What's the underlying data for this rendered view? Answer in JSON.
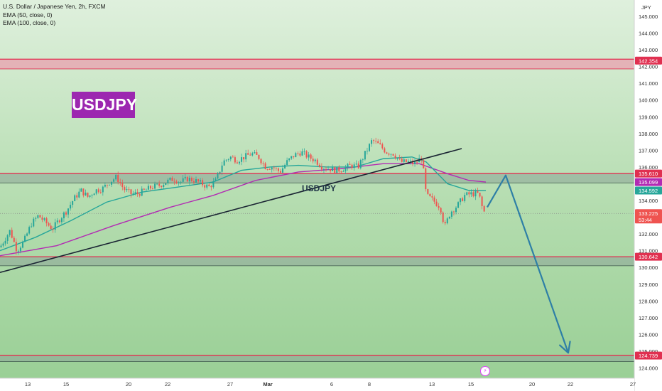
{
  "legend": {
    "title": "U.S. Dollar / Japanese Yen, 2h, FXCM",
    "ema50": "EMA (50, close, 0)",
    "ema100": "EMA (100, close, 0)"
  },
  "badge_text": "USDJPY",
  "chart_label": "USDJPY",
  "currency_label": "JPY",
  "icons": {
    "event": "lightning-icon"
  },
  "colors": {
    "background": "#ffffff",
    "zone_fill": "#9fd39b",
    "zone_edge": "#e03050",
    "bull": "#26a69a",
    "bear": "#ef5350",
    "ema50": "#26a69a",
    "ema100": "#b22bb3",
    "trendline": "#1a2433",
    "projection": "#2e7fa6",
    "price_line": "#888888"
  },
  "chart_data": {
    "type": "candlestick",
    "title": "U.S. Dollar / Japanese Yen, 2h, FXCM",
    "symbol": "USDJPY",
    "timeframe": "2h",
    "ylim": [
      123.8,
      145.3
    ],
    "y_ticks": [
      124.0,
      125.0,
      126.0,
      127.0,
      128.0,
      129.0,
      130.0,
      131.0,
      132.0,
      133.0,
      134.0,
      135.0,
      136.0,
      137.0,
      138.0,
      139.0,
      140.0,
      141.0,
      142.0,
      143.0,
      144.0,
      145.0
    ],
    "x_ticks": [
      "13",
      "15",
      "20",
      "22",
      "27",
      "Mar",
      "6",
      "8",
      "13",
      "15",
      "20",
      "22",
      "27"
    ],
    "price_tags": [
      {
        "value": "142.354",
        "color": "#e03050"
      },
      {
        "value": "135.610",
        "color": "#e03050"
      },
      {
        "value": "135.099",
        "color": "#b22bb3"
      },
      {
        "value": "134.592",
        "color": "#26a69a"
      },
      {
        "value": "133.225",
        "color": "#ef5350",
        "sub": "53:44"
      },
      {
        "value": "130.642",
        "color": "#e03050"
      },
      {
        "value": "124.739",
        "color": "#e03050"
      }
    ],
    "current_price": 133.225,
    "zones": [
      {
        "from": 141.86,
        "to": 142.44
      },
      {
        "from": 135.05,
        "to": 135.61
      },
      {
        "from": 130.1,
        "to": 130.64
      },
      {
        "from": 124.38,
        "to": 124.74
      }
    ],
    "price_path": [
      [
        0,
        131.2
      ],
      [
        14,
        132.2
      ],
      [
        24,
        131.0
      ],
      [
        34,
        131.6
      ],
      [
        44,
        132.6
      ],
      [
        54,
        133.1
      ],
      [
        64,
        132.7
      ],
      [
        74,
        132.3
      ],
      [
        84,
        132.9
      ],
      [
        94,
        133.4
      ],
      [
        104,
        134.1
      ],
      [
        114,
        134.6
      ],
      [
        124,
        134.2
      ],
      [
        134,
        134.6
      ],
      [
        144,
        134.7
      ],
      [
        154,
        135.1
      ],
      [
        164,
        135.4
      ],
      [
        174,
        134.7
      ],
      [
        184,
        134.4
      ],
      [
        194,
        134.4
      ],
      [
        204,
        134.6
      ],
      [
        214,
        134.8
      ],
      [
        224,
        134.9
      ],
      [
        234,
        135.1
      ],
      [
        244,
        135.3
      ],
      [
        254,
        135.1
      ],
      [
        264,
        135.3
      ],
      [
        274,
        135.2
      ],
      [
        284,
        135.0
      ],
      [
        294,
        134.8
      ],
      [
        304,
        135.2
      ],
      [
        314,
        136.3
      ],
      [
        324,
        136.6
      ],
      [
        334,
        136.4
      ],
      [
        344,
        136.6
      ],
      [
        354,
        136.8
      ],
      [
        364,
        136.6
      ],
      [
        374,
        136.0
      ],
      [
        384,
        136.0
      ],
      [
        394,
        135.7
      ],
      [
        404,
        136.3
      ],
      [
        414,
        136.7
      ],
      [
        424,
        136.9
      ],
      [
        434,
        136.6
      ],
      [
        444,
        136.4
      ],
      [
        454,
        136.0
      ],
      [
        464,
        135.9
      ],
      [
        474,
        135.8
      ],
      [
        484,
        135.9
      ],
      [
        494,
        136.1
      ],
      [
        504,
        136.0
      ],
      [
        514,
        136.8
      ],
      [
        524,
        137.6
      ],
      [
        534,
        137.3
      ],
      [
        544,
        136.9
      ],
      [
        554,
        136.8
      ],
      [
        564,
        136.3
      ],
      [
        574,
        136.3
      ],
      [
        584,
        136.2
      ],
      [
        594,
        136.6
      ],
      [
        600,
        134.3
      ],
      [
        610,
        134.0
      ],
      [
        620,
        133.6
      ],
      [
        626,
        132.4
      ],
      [
        634,
        133.3
      ],
      [
        644,
        133.7
      ],
      [
        654,
        134.3
      ],
      [
        664,
        134.4
      ],
      [
        674,
        134.4
      ],
      [
        680,
        133.4
      ],
      [
        684,
        133.2
      ]
    ],
    "ema50": [
      [
        0,
        131.0
      ],
      [
        50,
        131.8
      ],
      [
        100,
        132.8
      ],
      [
        150,
        133.9
      ],
      [
        200,
        134.5
      ],
      [
        250,
        134.8
      ],
      [
        300,
        135.1
      ],
      [
        340,
        135.8
      ],
      [
        380,
        136.0
      ],
      [
        420,
        136.1
      ],
      [
        460,
        136.0
      ],
      [
        500,
        136.0
      ],
      [
        540,
        136.5
      ],
      [
        580,
        136.6
      ],
      [
        600,
        136.3
      ],
      [
        630,
        135.0
      ],
      [
        660,
        134.6
      ],
      [
        684,
        134.59
      ]
    ],
    "ema100": [
      [
        0,
        130.7
      ],
      [
        80,
        131.3
      ],
      [
        160,
        132.5
      ],
      [
        240,
        133.6
      ],
      [
        300,
        134.3
      ],
      [
        360,
        135.2
      ],
      [
        420,
        135.7
      ],
      [
        480,
        135.9
      ],
      [
        540,
        136.2
      ],
      [
        590,
        136.2
      ],
      [
        630,
        135.6
      ],
      [
        660,
        135.2
      ],
      [
        684,
        135.1
      ]
    ],
    "trendline": [
      [
        0,
        129.7
      ],
      [
        650,
        137.1
      ]
    ],
    "projection": [
      [
        686,
        133.6
      ],
      [
        712,
        135.5
      ],
      [
        800,
        124.9
      ]
    ]
  }
}
